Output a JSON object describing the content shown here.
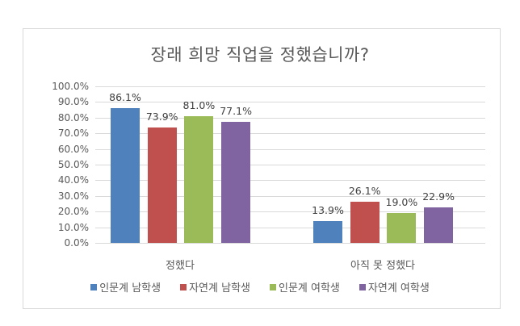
{
  "chart_data": {
    "type": "bar",
    "title": "장래 희망 직업을 정했습니까?",
    "categories": [
      "정했다",
      "아직 못 정했다"
    ],
    "series": [
      {
        "name": "인문계 남학생",
        "color": "#4f81bd",
        "values": [
          86.1,
          13.9
        ],
        "labels": [
          "86.1%",
          "13.9%"
        ]
      },
      {
        "name": "자연계 남학생",
        "color": "#c0504d",
        "values": [
          73.9,
          26.1
        ],
        "labels": [
          "73.9%",
          "26.1%"
        ]
      },
      {
        "name": "인문계 여학생",
        "color": "#9bbb59",
        "values": [
          81.0,
          19.0
        ],
        "labels": [
          "81.0%",
          "19.0%"
        ]
      },
      {
        "name": "자연계 여학생",
        "color": "#8064a2",
        "values": [
          77.1,
          22.9
        ],
        "labels": [
          "77.1%",
          "22.9%"
        ]
      }
    ],
    "xlabel": "",
    "ylabel": "",
    "ylim": [
      0,
      100
    ],
    "yticks": [
      "0.0%",
      "10.0%",
      "20.0%",
      "30.0%",
      "40.0%",
      "50.0%",
      "60.0%",
      "70.0%",
      "80.0%",
      "90.0%",
      "100.0%"
    ],
    "grid": true,
    "legend_position": "bottom"
  }
}
